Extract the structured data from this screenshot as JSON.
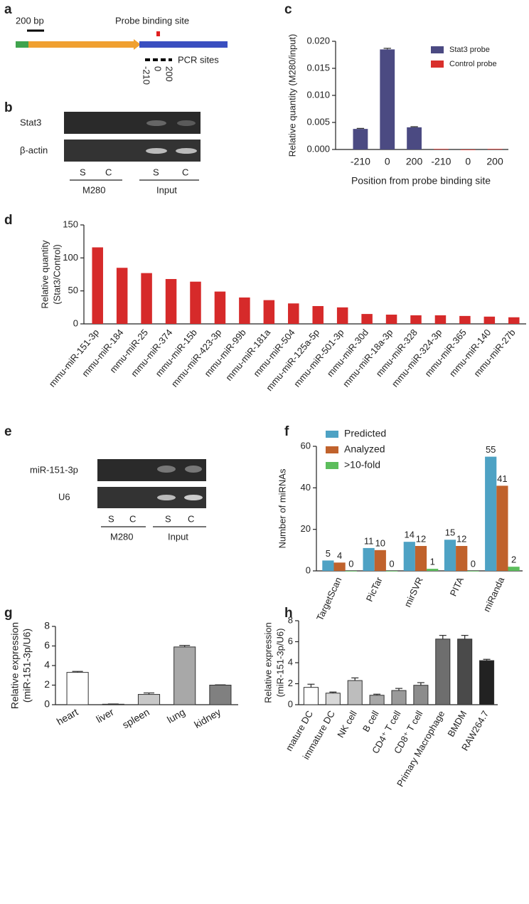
{
  "figure": {
    "a": {
      "letter": "a",
      "scale": "200 bp",
      "probe": "Probe binding site",
      "pcr": "PCR sites",
      "positions": [
        "-210",
        "0",
        "200"
      ]
    },
    "b": {
      "letter": "b",
      "rows": [
        "Stat3",
        "β-actin"
      ],
      "lanes": [
        "S",
        "C",
        "S",
        "C"
      ],
      "groups": [
        "M280",
        "Input"
      ]
    },
    "e": {
      "letter": "e",
      "rows": [
        "miR-151-3p",
        "U6"
      ],
      "lanes": [
        "S",
        "C",
        "S",
        "C"
      ],
      "groups": [
        "M280",
        "Input"
      ]
    }
  },
  "chart_data": [
    {
      "type": "bar",
      "panel": "c",
      "ylabel": [
        "Relative quantity (M280/input)"
      ],
      "xlabel": "Position from probe binding site",
      "categories": [
        "-210",
        "0",
        "200",
        "-210",
        "0",
        "200"
      ],
      "series": [
        {
          "name": "Stat3 probe",
          "color": "#4b4a82",
          "values": [
            0.0038,
            0.0185,
            0.0041,
            null,
            null,
            null
          ],
          "errors": [
            0.0001,
            0.0002,
            0.0001,
            null,
            null,
            null
          ]
        },
        {
          "name": "Control probe",
          "color": "#d9302c",
          "values": [
            null,
            null,
            null,
            0.0001,
            0,
            0.0001
          ]
        }
      ],
      "ylim": [
        0,
        0.02
      ],
      "yticks": [
        {
          "value": 0,
          "label": "0.000"
        },
        {
          "value": 0.005,
          "label": "0.005"
        },
        {
          "value": 0.01,
          "label": "0.010"
        },
        {
          "value": 0.015,
          "label": "0.015"
        },
        {
          "value": 0.02,
          "label": "0.020"
        }
      ],
      "legend": "upper right"
    },
    {
      "type": "bar",
      "panel": "d",
      "ylabel": [
        "Relative quantity",
        "(Stat3/Control)"
      ],
      "color": "#d62a2a",
      "categories": [
        "mmu-miR-151-3p",
        "mmu-miR-184",
        "mmu-miR-25",
        "mmu-miR-374",
        "mmu-miR-15b",
        "mmu-miR-423-3p",
        "mmu-miR-99b",
        "mmu-miR-181a",
        "mmu-miR-504",
        "mmu-miR-125a-5p",
        "mmu-miR-501-3p",
        "mmu-miR-30d",
        "mmu-miR-18a-3p",
        "mmu-miR-328",
        "mmu-miR-324-3p",
        "mmu-miR-365",
        "mmu-miR-140",
        "mmu-miR-27b"
      ],
      "values": [
        116,
        85,
        77,
        68,
        64,
        49,
        40,
        36,
        31,
        27,
        25,
        15,
        14,
        13,
        13,
        12,
        11,
        10
      ],
      "ylim": [
        0,
        150
      ],
      "yticks": [
        0,
        50,
        100,
        150
      ]
    },
    {
      "type": "bar",
      "panel": "f",
      "ylabel": [
        "Number of miRNAs"
      ],
      "categories": [
        "TargetScan",
        "PicTar",
        "mirSVR",
        "PITA",
        "miRanda"
      ],
      "series": [
        {
          "name": "Predicted",
          "color": "#4ea2c4",
          "values": [
            5,
            11,
            14,
            15,
            55
          ]
        },
        {
          "name": "Analyzed",
          "color": "#c0622c",
          "values": [
            4,
            10,
            12,
            12,
            41
          ]
        },
        {
          "name": ">10-fold",
          "color": "#5cbd5c",
          "values": [
            0,
            0,
            1,
            0,
            2
          ]
        }
      ],
      "ylim": [
        0,
        60
      ],
      "yticks": [
        0,
        20,
        40,
        60
      ],
      "legend": "upper left",
      "data_labels": true
    },
    {
      "type": "bar",
      "panel": "g",
      "ylabel": [
        "Relative expression",
        "(miR-151-3p/U6)"
      ],
      "categories": [
        "heart",
        "liver",
        "spleen",
        "lung",
        "kidney"
      ],
      "values": [
        3.3,
        0.05,
        1.05,
        5.9,
        2.0
      ],
      "errors": [
        0.1,
        0.02,
        0.15,
        0.15,
        0.03
      ],
      "colors": [
        "#ffffff",
        "#555555",
        "#c8c8c8",
        "#a8a8a8",
        "#808080"
      ],
      "ylim": [
        0,
        8
      ],
      "yticks": [
        0,
        2,
        4,
        6,
        8
      ]
    },
    {
      "type": "bar",
      "panel": "h",
      "ylabel": [
        "Relative expression",
        "(miR-151-3p/U6)"
      ],
      "categories": [
        "mature DC",
        "immature DC",
        "NK cell",
        "B cell",
        "CD4⁺ T cell",
        "CD8⁺ T cell",
        "Primary Macrophage",
        "BMDM",
        "RAW264.7"
      ],
      "values": [
        1.65,
        1.1,
        2.3,
        0.9,
        1.35,
        1.85,
        6.25,
        6.25,
        4.2
      ],
      "errors": [
        0.3,
        0.1,
        0.25,
        0.1,
        0.2,
        0.25,
        0.35,
        0.35,
        0.12
      ],
      "colors": [
        "#ffffff",
        "#d8d8d8",
        "#bdbdbd",
        "#a8a8a8",
        "#9a9a9a",
        "#8c8c8c",
        "#6e6e6e",
        "#4a4a4a",
        "#222222"
      ],
      "ylim": [
        0,
        8
      ],
      "yticks": [
        0,
        2,
        4,
        6,
        8
      ]
    }
  ]
}
